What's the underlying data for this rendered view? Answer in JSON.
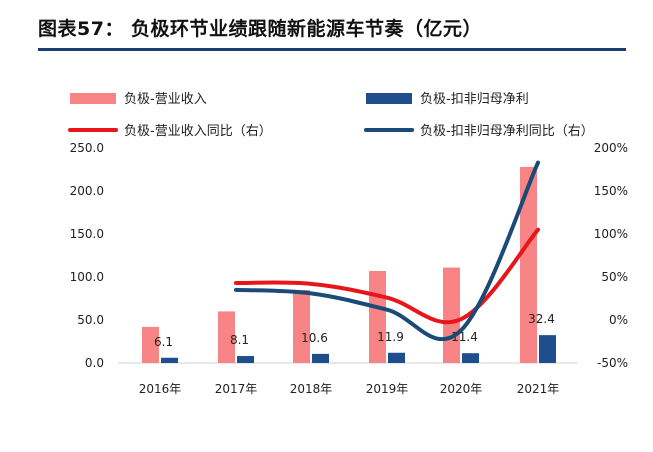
{
  "title": "图表57： 负极环节业绩跟随新能源车节奏（亿元）",
  "colors": {
    "revenue_bar": "#f88485",
    "profit_bar": "#1f4e8c",
    "revenue_yoy_line": "#e8161a",
    "profit_yoy_line": "#1a4b78",
    "title_rule": "#1a3c6e"
  },
  "chart_data": {
    "type": "bar",
    "categories": [
      "2016年",
      "2017年",
      "2018年",
      "2019年",
      "2020年",
      "2021年"
    ],
    "series": [
      {
        "name": "负极-营业收入",
        "type": "bar",
        "axis": "left",
        "values": [
          42,
          60,
          85,
          107,
          111,
          228
        ]
      },
      {
        "name": "负极-扣非归母净利",
        "type": "bar",
        "axis": "left",
        "values": [
          6.1,
          8.1,
          10.6,
          11.9,
          11.4,
          32.4
        ],
        "labels": [
          "6.1",
          "8.1",
          "10.6",
          "11.9",
          "11.4",
          "32.4"
        ]
      },
      {
        "name": "负极-营业收入同比（右）",
        "type": "line",
        "axis": "right",
        "values": [
          null,
          43,
          42,
          26,
          1,
          105
        ]
      },
      {
        "name": "负极-扣非归母净利同比（右）",
        "type": "line",
        "axis": "right",
        "values": [
          null,
          35,
          31,
          12,
          -12,
          183
        ]
      }
    ],
    "left_axis": {
      "ticks": [
        "0.0",
        "50.0",
        "100.0",
        "150.0",
        "200.0",
        "250.0"
      ],
      "ylim": [
        0,
        250
      ]
    },
    "right_axis": {
      "ticks": [
        "-50%",
        "0%",
        "50%",
        "100%",
        "150%",
        "200%"
      ],
      "ylim": [
        -50,
        200
      ]
    },
    "legend_placement": "top",
    "grid": false
  }
}
